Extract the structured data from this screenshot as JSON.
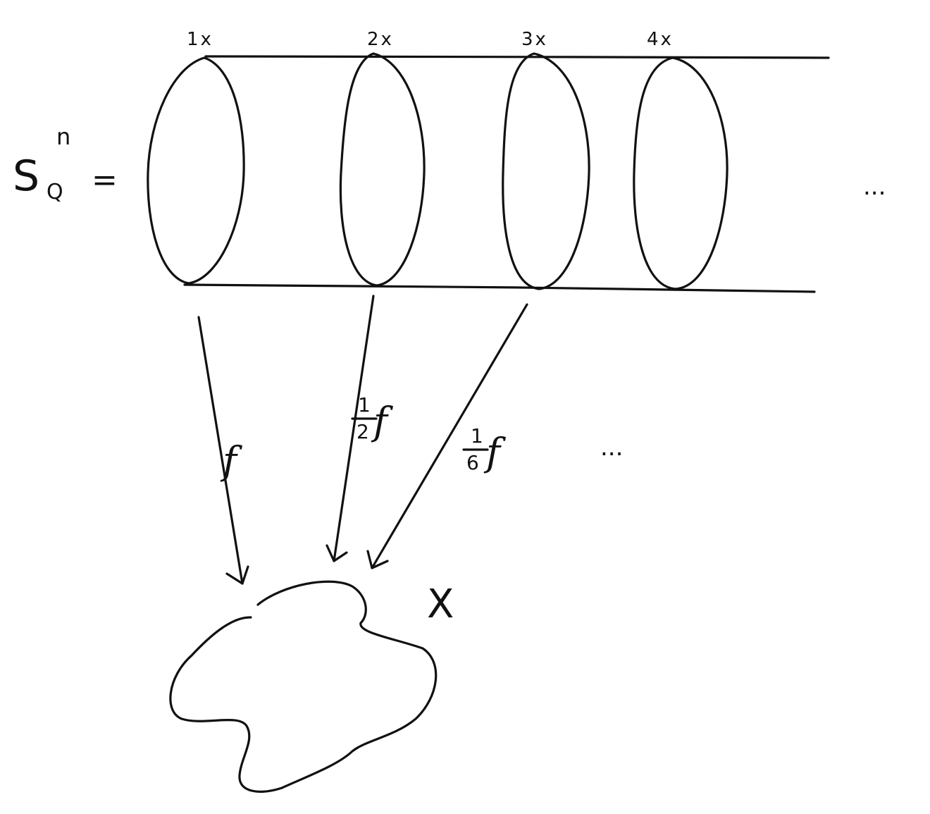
{
  "space": {
    "symbol": "S",
    "superscript": "n",
    "subscript": "Q",
    "equals": "="
  },
  "copies": [
    {
      "label": "1x"
    },
    {
      "label": "2x"
    },
    {
      "label": "3x"
    },
    {
      "label": "4x"
    }
  ],
  "continuation_right": "...",
  "maps": [
    {
      "coefficient_num": "",
      "coefficient_den": "",
      "function": "f"
    },
    {
      "coefficient_num": "1",
      "coefficient_den": "2",
      "function": "f"
    },
    {
      "coefficient_num": "1",
      "coefficient_den": "6",
      "function": "f"
    }
  ],
  "continuation_maps": "...",
  "target": {
    "label": "X"
  },
  "colors": {
    "ink": "#111111",
    "paper": "#ffffff"
  }
}
